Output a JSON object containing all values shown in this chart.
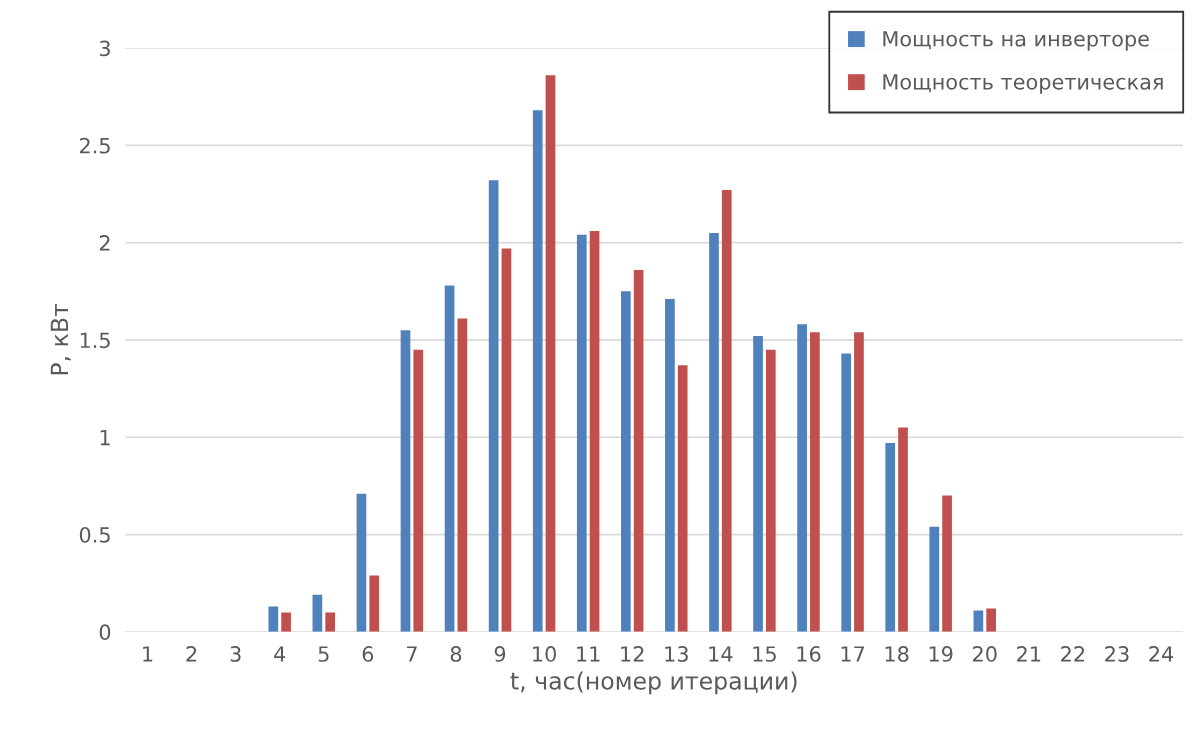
{
  "chart_data": {
    "type": "bar",
    "xlabel": "t, час(номер итерации)",
    "ylabel": "P, кВт",
    "categories": [
      "1",
      "2",
      "3",
      "4",
      "5",
      "6",
      "7",
      "8",
      "9",
      "10",
      "11",
      "12",
      "13",
      "14",
      "15",
      "16",
      "17",
      "18",
      "19",
      "20",
      "21",
      "22",
      "23",
      "24"
    ],
    "series": [
      {
        "name": "Мощность на инверторе",
        "color": "#4f81bd",
        "values": [
          0,
          0,
          0,
          0.13,
          0.19,
          0.71,
          1.55,
          1.78,
          2.32,
          2.68,
          2.04,
          1.75,
          1.71,
          2.05,
          1.52,
          1.58,
          1.43,
          0.97,
          0.54,
          0.11,
          0,
          0,
          0,
          0
        ]
      },
      {
        "name": "Мощность теоретическая",
        "color": "#c0504d",
        "values": [
          0,
          0,
          0,
          0.1,
          0.1,
          0.29,
          1.45,
          1.61,
          1.97,
          2.86,
          2.06,
          1.86,
          1.37,
          2.27,
          1.45,
          1.54,
          1.54,
          1.05,
          0.7,
          0.12,
          0,
          0,
          0,
          0
        ]
      }
    ],
    "ylim": [
      0,
      3
    ],
    "yticks": [
      0,
      0.5,
      1,
      1.5,
      2,
      2.5,
      3
    ],
    "grid": "y",
    "legend": "top right"
  }
}
